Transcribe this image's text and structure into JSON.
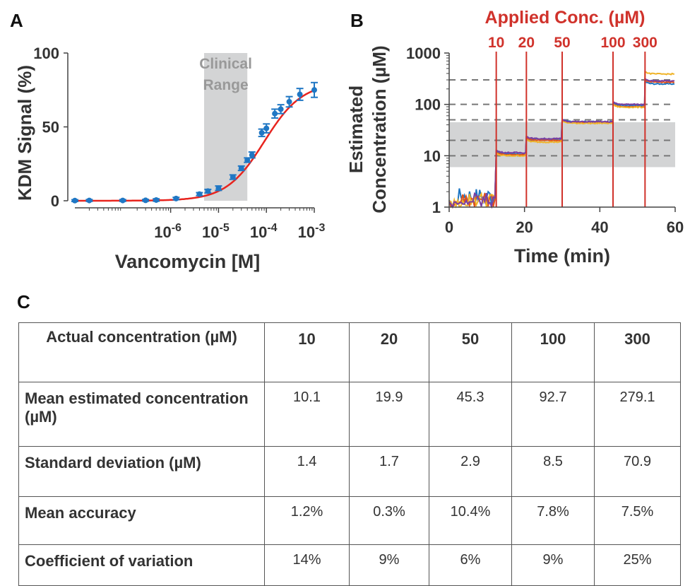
{
  "panel_labels": {
    "a": "A",
    "b": "B",
    "c": "C"
  },
  "colors": {
    "fit_line": "#e8241e",
    "markers": "#1f77c4",
    "shade": "#d3d4d5",
    "shade_text": "#999999",
    "annotation_red": "#d0322b",
    "series_blue": "#1f77c4",
    "series_orange": "#e0521b",
    "series_yellow": "#f0b429",
    "series_purple": "#7b3fa2",
    "reference_dash": "#777777"
  },
  "chart_data": [
    {
      "panel": "A",
      "type": "scatter",
      "xlabel": "Vancomycin [M]",
      "ylabel": "KDM Signal (%)",
      "x_scale": "log",
      "xlim": [
        1e-08,
        0.001
      ],
      "ylim": [
        0,
        100
      ],
      "x_ticks": [
        1e-06,
        1e-05,
        0.0001,
        0.001
      ],
      "x_tick_labels": [
        {
          "base": "10",
          "exp": "-6"
        },
        {
          "base": "10",
          "exp": "-5"
        },
        {
          "base": "10",
          "exp": "-4"
        },
        {
          "base": "10",
          "exp": "-3"
        }
      ],
      "y_ticks": [
        0,
        50,
        100
      ],
      "y_tick_labels": [
        "0",
        "50",
        "100"
      ],
      "shaded_region": {
        "x_range": [
          5e-06,
          4e-05
        ],
        "label_line1": "Clinical",
        "label_line2": "Range"
      },
      "grid": false,
      "series": [
        {
          "markers": true,
          "error_bars": true,
          "points": [
            {
              "x": 1e-08,
              "y": 0.1,
              "err": 0.6
            },
            {
              "x": 2e-08,
              "y": 0.2,
              "err": 0.6
            },
            {
              "x": 1e-07,
              "y": 0.2,
              "err": 0.6
            },
            {
              "x": 3e-07,
              "y": 0.3,
              "err": 0.6
            },
            {
              "x": 5e-07,
              "y": 0.5,
              "err": 0.8
            },
            {
              "x": 1.3e-06,
              "y": 1.5,
              "err": 0.8
            },
            {
              "x": 4e-06,
              "y": 4.5,
              "err": 1.0
            },
            {
              "x": 6e-06,
              "y": 6.5,
              "err": 1.2
            },
            {
              "x": 1e-05,
              "y": 8.5,
              "err": 1.5
            },
            {
              "x": 2e-05,
              "y": 16.0,
              "err": 1.5
            },
            {
              "x": 3e-05,
              "y": 22.0,
              "err": 1.5
            },
            {
              "x": 4e-05,
              "y": 27.5,
              "err": 1.5
            },
            {
              "x": 5e-05,
              "y": 31.0,
              "err": 2.0
            },
            {
              "x": 8e-05,
              "y": 46.0,
              "err": 2.5
            },
            {
              "x": 0.0001,
              "y": 49.0,
              "err": 3.0
            },
            {
              "x": 0.00015,
              "y": 59.0,
              "err": 3.0
            },
            {
              "x": 0.0002,
              "y": 62.0,
              "err": 3.0
            },
            {
              "x": 0.0003,
              "y": 67.0,
              "err": 3.5
            },
            {
              "x": 0.0005,
              "y": 72.0,
              "err": 4.0
            },
            {
              "x": 0.001,
              "y": 75.0,
              "err": 5.0
            }
          ]
        },
        {
          "fit_curve": true,
          "model": {
            "bottom": 0,
            "top": 80,
            "ec50": 9e-05,
            "hill": 1.1
          }
        }
      ]
    },
    {
      "panel": "B",
      "type": "line",
      "xlabel": "Time (min)",
      "ylabel_line1": "Estimated",
      "ylabel_line2": "Concentration (µM)",
      "y_scale": "log",
      "xlim": [
        0,
        60
      ],
      "ylim": [
        1,
        1000
      ],
      "x_ticks": [
        0,
        20,
        40,
        60
      ],
      "x_tick_labels": [
        "0",
        "20",
        "40",
        "60"
      ],
      "y_ticks": [
        1,
        10,
        100,
        1000
      ],
      "y_tick_labels": [
        "1",
        "10",
        "100",
        "1000"
      ],
      "title": "Applied Conc. (µM)",
      "shaded_band": [
        6,
        45
      ],
      "reference_levels": [
        10,
        20,
        50,
        100,
        300
      ],
      "grid": false,
      "applied_concentrations": [
        {
          "time": 12.5,
          "label": "10"
        },
        {
          "time": 20.5,
          "label": "20"
        },
        {
          "time": 30.0,
          "label": "50"
        },
        {
          "time": 43.5,
          "label": "100"
        },
        {
          "time": 52.0,
          "label": "300"
        }
      ],
      "steps": [
        {
          "t_start": 12.5,
          "t_end": 20.5,
          "levels": [
            11,
            10.5,
            10,
            11.5
          ]
        },
        {
          "t_start": 20.5,
          "t_end": 30.0,
          "levels": [
            21,
            20,
            18.5,
            21.5
          ]
        },
        {
          "t_start": 30.0,
          "t_end": 43.5,
          "levels": [
            46,
            44,
            43,
            46
          ]
        },
        {
          "t_start": 43.5,
          "t_end": 52.0,
          "levels": [
            95,
            90,
            88,
            100
          ]
        },
        {
          "t_start": 52.0,
          "t_end": 60.0,
          "levels": [
            250,
            270,
            390,
            285
          ]
        }
      ],
      "series": [
        {
          "name": "",
          "color_key": "series_blue"
        },
        {
          "name": "",
          "color_key": "series_orange"
        },
        {
          "name": "",
          "color_key": "series_yellow"
        },
        {
          "name": "",
          "color_key": "series_purple"
        }
      ]
    },
    {
      "panel": "C",
      "type": "table",
      "columns": [
        "Actual concentration (µM)",
        "10",
        "20",
        "50",
        "100",
        "300"
      ],
      "rows": [
        {
          "label": "Mean estimated concentration (µM)",
          "values": [
            "10.1",
            "19.9",
            "45.3",
            "92.7",
            "279.1"
          ]
        },
        {
          "label": "Standard deviation (µM)",
          "values": [
            "1.4",
            "1.7",
            "2.9",
            "8.5",
            "70.9"
          ]
        },
        {
          "label": "Mean accuracy",
          "values": [
            "1.2%",
            "0.3%",
            "10.4%",
            "7.8%",
            "7.5%"
          ]
        },
        {
          "label": "Coefficient of variation",
          "values": [
            "14%",
            "9%",
            "6%",
            "9%",
            "25%"
          ]
        }
      ]
    }
  ]
}
